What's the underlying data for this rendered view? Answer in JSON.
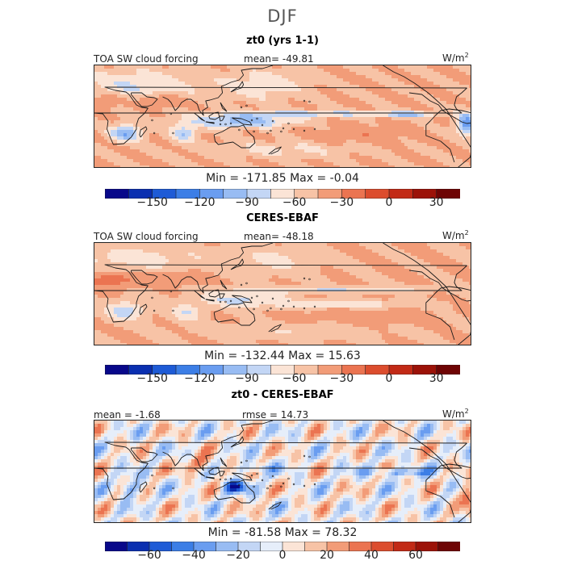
{
  "page_title": "DJF",
  "panels": [
    {
      "title": "zt0 (yrs 1-1)",
      "left_label": "TOA SW cloud forcing",
      "stat_label": "mean=",
      "stat_value": "-49.81",
      "units": "W/m",
      "units_exp": "2",
      "min_label": "Min =",
      "min_value": "-171.85",
      "max_label": "Max =",
      "max_value": "-0.04",
      "field": "model",
      "colorbar": "abs"
    },
    {
      "title": "CERES-EBAF",
      "left_label": "TOA SW cloud forcing",
      "stat_label": "mean=",
      "stat_value": "-48.18",
      "units": "W/m",
      "units_exp": "2",
      "min_label": "Min =",
      "min_value": "-132.44",
      "max_label": "Max =",
      "max_value": "15.63",
      "field": "obs",
      "colorbar": "abs"
    },
    {
      "title": "zt0 - CERES-EBAF",
      "left_label": "mean =",
      "left_value": "-1.68",
      "stat_label": "rmse =",
      "stat_value": "14.73",
      "units": "W/m",
      "units_exp": "2",
      "min_label": "Min =",
      "min_value": "-81.58",
      "max_label": "Max =",
      "max_value": "78.32",
      "field": "diff",
      "colorbar": "diff"
    }
  ],
  "colorbars": {
    "abs": {
      "levels": [
        -180,
        -165,
        -150,
        -135,
        -120,
        -105,
        -90,
        -75,
        -60,
        -45,
        -30,
        -15,
        0,
        15,
        30,
        45
      ],
      "tick_values": [
        -150,
        -120,
        -90,
        -60,
        -30,
        0,
        30
      ],
      "tick_labels": [
        "−150",
        "−120",
        "−90",
        "−60",
        "−30",
        "0",
        "30"
      ]
    },
    "diff": {
      "levels": [
        -80,
        -70,
        -60,
        -50,
        -40,
        -30,
        -20,
        -10,
        0,
        10,
        20,
        30,
        40,
        50,
        60,
        70,
        80
      ],
      "tick_values": [
        -60,
        -40,
        -20,
        0,
        20,
        40,
        60
      ],
      "tick_labels": [
        "−60",
        "−40",
        "−20",
        "0",
        "20",
        "40",
        "60"
      ]
    }
  },
  "colors": {
    "palette": [
      "#08088a",
      "#0a2fb0",
      "#1e5bd6",
      "#3c7ee6",
      "#6a9df0",
      "#98bcf3",
      "#c3d6f5",
      "#e6eefa",
      "#fbe4d6",
      "#f7c3a6",
      "#f29c78",
      "#eb7451",
      "#dc4d2e",
      "#c22a16",
      "#9c1208",
      "#6e0404"
    ],
    "coastline": "#1a1a1a",
    "frame": "#222222"
  }
}
